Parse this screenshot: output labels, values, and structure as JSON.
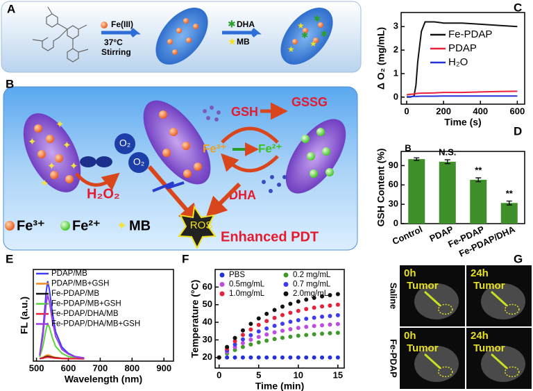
{
  "panel_labels": [
    "A",
    "B",
    "C",
    "D",
    "E",
    "F",
    "G"
  ],
  "scheme_a": {
    "reagent1": "Fe(III)",
    "conditions": [
      "37°C",
      "Stirring"
    ],
    "reagent2": "DHA",
    "reagent3": "MB"
  },
  "scheme_b": {
    "labels": [
      "GSH",
      "GSSG",
      "Fe³⁺",
      "Fe²⁺",
      "O₂",
      "O₂",
      "H₂O₂",
      "DHA",
      "ROS"
    ],
    "legend": [
      "Fe³⁺",
      "Fe²⁺",
      "MB"
    ],
    "caption": "Enhanced PDT"
  },
  "chart_data": [
    {
      "type": "line",
      "xlabel": "Time (s)",
      "ylabel": "Δ O₂ (mg/mL)",
      "x": [
        0,
        20,
        40,
        50,
        60,
        80,
        100,
        150,
        200,
        300,
        400,
        500,
        600
      ],
      "series": [
        {
          "name": "Fe-PDAP",
          "color": "#111111",
          "values": [
            0,
            0,
            0.05,
            0.5,
            1.5,
            2.8,
            3.2,
            3.2,
            3.15,
            3.15,
            3.1,
            3.05,
            3.0
          ]
        },
        {
          "name": "PDAP",
          "color": "#e8203a",
          "values": [
            0.1,
            0.12,
            0.13,
            0.15,
            0.16,
            0.17,
            0.17,
            0.18,
            0.2,
            0.2,
            0.22,
            0.24,
            0.25
          ]
        },
        {
          "name": "H₂O",
          "color": "#2431d6",
          "values": [
            0.02,
            0.02,
            0.03,
            0.03,
            0.03,
            0.04,
            0.04,
            0.04,
            0.05,
            0.05,
            0.05,
            0.05,
            0.05
          ]
        }
      ],
      "xlim": [
        -30,
        640
      ],
      "xticks": [
        0,
        200,
        400,
        600
      ],
      "ylim": [
        -0.3,
        3.6
      ],
      "yticks": [
        0,
        1,
        2,
        3
      ]
    },
    {
      "type": "bar",
      "ylabel": "GSH Content (%)",
      "corner_mark": "B",
      "categories": [
        "Control",
        "PDAP",
        "Fe-PDAP",
        "Fe-PDAP/DHA"
      ],
      "values": [
        100,
        96,
        68,
        32
      ],
      "errors": [
        2,
        3,
        3,
        3
      ],
      "annotations": [
        "N.S.",
        "**",
        "**"
      ],
      "color": "#3f8f2a",
      "ylim": [
        0,
        112
      ],
      "yticks": [
        0,
        30,
        60,
        90
      ]
    },
    {
      "type": "line",
      "xlabel": "Wavelength (nm)",
      "ylabel": "FL (a.u.)",
      "x": [
        510,
        520,
        530,
        535,
        540,
        550,
        560,
        580,
        600,
        620,
        650
      ],
      "series": [
        {
          "name": "PDAP/MB",
          "color": "#3c3cf0",
          "values": [
            0.05,
            0.35,
            0.85,
            1.0,
            0.9,
            0.6,
            0.35,
            0.15,
            0.07,
            0.03,
            0.01
          ]
        },
        {
          "name": "PDAP/MB+GSH",
          "color": "#f08a1c",
          "values": [
            0.003,
            0.018,
            0.043,
            0.05,
            0.045,
            0.03,
            0.018,
            0.008,
            0.004,
            0.002,
            0.001
          ]
        },
        {
          "name": "Fe-PDAP/MB",
          "color": "#111111",
          "values": [
            0.002,
            0.011,
            0.026,
            0.03,
            0.027,
            0.018,
            0.011,
            0.005,
            0.002,
            0.001,
            0.0
          ]
        },
        {
          "name": "Fe-PDAP/MB+GSH",
          "color": "#5bd43a",
          "values": [
            0.023,
            0.16,
            0.38,
            0.45,
            0.41,
            0.27,
            0.16,
            0.07,
            0.03,
            0.014,
            0.005
          ]
        },
        {
          "name": "Fe-PDAP/DHA/MB",
          "color": "#e8203a",
          "values": [
            0.001,
            0.007,
            0.017,
            0.02,
            0.018,
            0.012,
            0.007,
            0.003,
            0.001,
            0.001,
            0.0
          ]
        },
        {
          "name": "Fe-PDAP/DHA/MB+GSH",
          "color": "#a23be0",
          "values": [
            0.041,
            0.29,
            0.7,
            0.82,
            0.74,
            0.49,
            0.29,
            0.12,
            0.06,
            0.025,
            0.008
          ]
        }
      ],
      "xlim": [
        490,
        930
      ],
      "xticks": [
        500,
        600,
        700,
        800,
        900
      ],
      "ylim": [
        -0.03,
        1.15
      ]
    },
    {
      "type": "line",
      "marker": true,
      "xlabel": "Time (min)",
      "ylabel": "Temperature (°C)",
      "x": [
        0,
        1,
        2,
        3,
        4,
        5,
        6,
        7,
        8,
        9,
        10,
        11,
        12,
        13,
        14,
        15
      ],
      "series": [
        {
          "name": "PBS",
          "color": "#2431d6",
          "values": [
            20,
            20,
            20,
            20,
            20,
            20,
            20,
            20,
            20,
            20,
            20,
            20,
            20,
            20,
            20,
            20
          ]
        },
        {
          "name": "0.2 mg/mL",
          "color": "#3f9a2a",
          "values": [
            20,
            22.3,
            24.3,
            26.0,
            27.4,
            28.6,
            29.6,
            30.5,
            31.2,
            31.8,
            32.4,
            32.8,
            33.2,
            33.5,
            33.8,
            34
          ]
        },
        {
          "name": "0.5mg/mL",
          "color": "#c04be0",
          "values": [
            20,
            23.2,
            25.9,
            28.2,
            30.1,
            31.7,
            33.1,
            34.3,
            35.2,
            36.1,
            36.8,
            37.4,
            37.9,
            38.3,
            38.7,
            39
          ]
        },
        {
          "name": "0.7 mg/mL",
          "color": "#3c3cf0",
          "values": [
            20,
            24.0,
            27.4,
            30.3,
            32.7,
            34.8,
            36.5,
            38.0,
            39.2,
            40.3,
            41.2,
            42.0,
            42.6,
            43.2,
            43.6,
            44
          ]
        },
        {
          "name": "1.0mg/mL",
          "color": "#e8203a",
          "values": [
            20,
            25.0,
            29.3,
            32.9,
            35.9,
            38.5,
            40.7,
            42.5,
            44.1,
            45.4,
            46.5,
            47.5,
            48.3,
            49.0,
            49.5,
            50
          ]
        },
        {
          "name": "2.0mg/mL",
          "color": "#111111",
          "values": [
            20,
            26.0,
            31.1,
            35.4,
            39.1,
            42.2,
            44.8,
            47.0,
            48.9,
            50.5,
            51.8,
            52.9,
            53.9,
            54.7,
            55.4,
            56
          ]
        }
      ],
      "xlim": [
        -0.5,
        15.8
      ],
      "xticks": [
        0,
        5,
        10,
        15
      ],
      "ylim": [
        14,
        70
      ],
      "yticks": [
        20,
        30,
        40,
        50,
        60
      ]
    }
  ],
  "imaging": {
    "row_labels": [
      "Saline",
      "Fe-PDAP"
    ],
    "cells": [
      {
        "time": "0h",
        "label": "Tumor"
      },
      {
        "time": "24h",
        "label": "Tumor"
      },
      {
        "time": "0h",
        "label": "Tumor"
      },
      {
        "time": "24h",
        "label": "Tumor"
      }
    ]
  }
}
